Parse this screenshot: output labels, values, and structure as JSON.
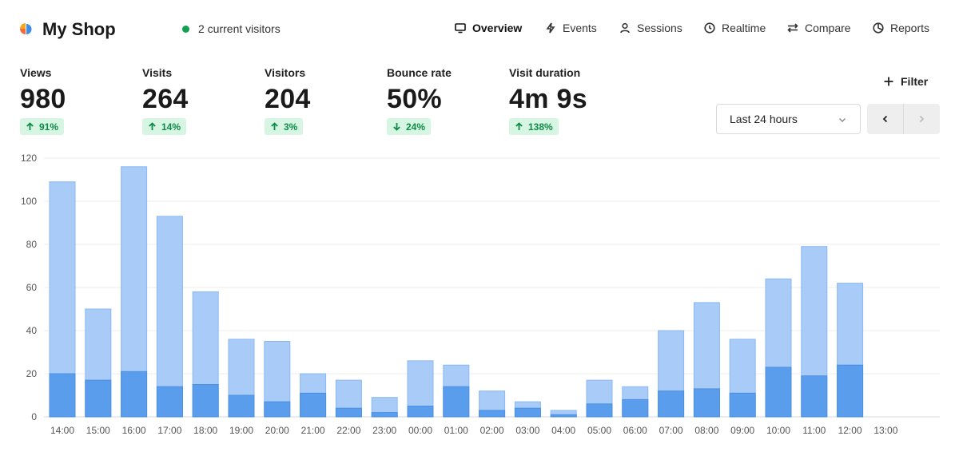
{
  "header": {
    "title": "My Shop",
    "current_visitors": "2 current visitors",
    "status_color": "#12a150"
  },
  "nav": [
    {
      "label": "Overview",
      "icon": "monitor-icon",
      "active": true
    },
    {
      "label": "Events",
      "icon": "lightning-icon",
      "active": false
    },
    {
      "label": "Sessions",
      "icon": "user-icon",
      "active": false
    },
    {
      "label": "Realtime",
      "icon": "clock-icon",
      "active": false
    },
    {
      "label": "Compare",
      "icon": "compare-arrows-icon",
      "active": false
    },
    {
      "label": "Reports",
      "icon": "pie-chart-icon",
      "active": false
    }
  ],
  "metrics": [
    {
      "label": "Views",
      "value": "980",
      "change": "91%",
      "direction": "up"
    },
    {
      "label": "Visits",
      "value": "264",
      "change": "14%",
      "direction": "up"
    },
    {
      "label": "Visitors",
      "value": "204",
      "change": "3%",
      "direction": "up"
    },
    {
      "label": "Bounce rate",
      "value": "50%",
      "change": "24%",
      "direction": "down"
    },
    {
      "label": "Visit duration",
      "value": "4m 9s",
      "change": "138%",
      "direction": "up"
    }
  ],
  "controls": {
    "filter_label": "Filter",
    "date_range": "Last 24 hours"
  },
  "colors": {
    "accent_light": "#a9cbf7",
    "accent_dark": "#5a9ded",
    "positive_bg": "#d6f5e3",
    "positive_text": "#0e8a47"
  },
  "chart_data": {
    "type": "bar",
    "stacked": "overlay",
    "categories": [
      "14:00",
      "15:00",
      "16:00",
      "17:00",
      "18:00",
      "19:00",
      "20:00",
      "21:00",
      "22:00",
      "23:00",
      "00:00",
      "01:00",
      "02:00",
      "03:00",
      "04:00",
      "05:00",
      "06:00",
      "07:00",
      "08:00",
      "09:00",
      "10:00",
      "11:00",
      "12:00",
      "13:00"
    ],
    "series": [
      {
        "values": [
          109,
          50,
          116,
          93,
          58,
          36,
          35,
          20,
          17,
          9,
          26,
          24,
          12,
          7,
          3,
          17,
          14,
          40,
          53,
          36,
          64,
          79,
          62,
          0
        ],
        "color": "#a9cbf7"
      },
      {
        "values": [
          20,
          17,
          21,
          14,
          15,
          10,
          7,
          11,
          4,
          2,
          5,
          14,
          3,
          4,
          1,
          6,
          8,
          12,
          13,
          11,
          23,
          19,
          24,
          0
        ],
        "color": "#5a9ded"
      }
    ],
    "ylim": [
      0,
      120
    ],
    "yticks": [
      0,
      20,
      40,
      60,
      80,
      100,
      120
    ],
    "grid": true
  }
}
